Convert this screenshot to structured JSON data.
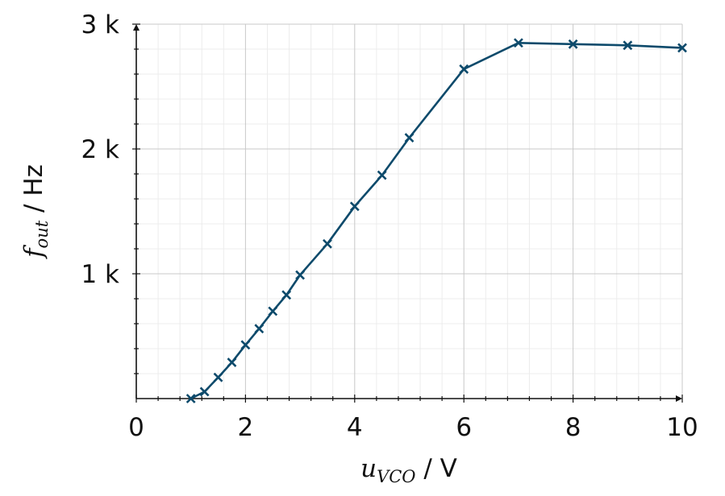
{
  "chart_data": {
    "type": "line",
    "xlabel": {
      "var": "u",
      "sub": "VCO",
      "unit": " / V"
    },
    "ylabel": {
      "var": "f",
      "sub": "out",
      "unit": " / Hz"
    },
    "xlim": [
      0,
      10
    ],
    "ylim": [
      0,
      3000
    ],
    "xticks": [
      {
        "value": 0,
        "label": "0"
      },
      {
        "value": 2,
        "label": "2"
      },
      {
        "value": 4,
        "label": "4"
      },
      {
        "value": 6,
        "label": "6"
      },
      {
        "value": 8,
        "label": "8"
      },
      {
        "value": 10,
        "label": "10"
      }
    ],
    "yticks": [
      {
        "value": 1000,
        "label": "1 k"
      },
      {
        "value": 2000,
        "label": "2 k"
      },
      {
        "value": 3000,
        "label": "3 k"
      }
    ],
    "grid": true,
    "marker": "x",
    "series": [
      {
        "color": "#0d4a6b",
        "x": [
          1,
          1.25,
          1.5,
          1.75,
          2,
          2.25,
          2.5,
          2.75,
          3,
          3.5,
          4,
          4.5,
          5,
          6,
          7,
          8,
          9,
          10
        ],
        "y": [
          0,
          55,
          170,
          290,
          430,
          560,
          700,
          830,
          990,
          1240,
          1540,
          1790,
          2090,
          2640,
          2850,
          2840,
          2830,
          2810
        ]
      }
    ]
  }
}
